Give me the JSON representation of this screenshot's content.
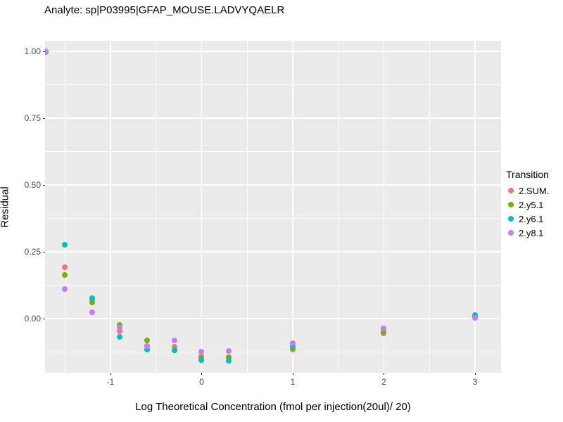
{
  "title": "Analyte: sp|P03995|GFAP_MOUSE.LADVYQAELR",
  "chart_data": {
    "type": "scatter",
    "title": "Analyte: sp|P03995|GFAP_MOUSE.LADVYQAELR",
    "xlabel": "Log Theoretical Concentration (fmol per injection(20ul)/ 20)",
    "ylabel": "Residual",
    "xlim": [
      -1.718,
      3.286
    ],
    "ylim": [
      -0.203,
      1.039
    ],
    "grid": true,
    "panel_bg": "#EBEBEB",
    "grid_color": "#FFFFFF",
    "x_major_ticks": [
      -1,
      0,
      1,
      2,
      3
    ],
    "x_major_labels": [
      "-1",
      "0",
      "1",
      "2",
      "3"
    ],
    "x_minor_ticks": [
      -1.5,
      -0.5,
      0.5,
      1.5,
      2.5
    ],
    "y_major_ticks": [
      0.0,
      0.25,
      0.5,
      0.75,
      1.0
    ],
    "y_major_labels": [
      "0.00",
      "0.25",
      "0.50",
      "0.75",
      "1.00"
    ],
    "y_minor_ticks": [
      -0.125,
      0.125,
      0.375,
      0.625,
      0.875
    ],
    "legend_title": "Transition",
    "legend_position": "right",
    "series": [
      {
        "name": "2.SUM.",
        "color": "#F8766D",
        "points": [
          [
            -1.71,
            0.999
          ],
          [
            -1.5,
            0.191
          ],
          [
            -1.2,
            0.07
          ],
          [
            -0.9,
            -0.047
          ],
          [
            -0.6,
            -0.104
          ],
          [
            -0.3,
            -0.105
          ],
          [
            0.0,
            -0.143
          ],
          [
            0.3,
            -0.146
          ],
          [
            1.0,
            -0.115
          ],
          [
            2.0,
            -0.056
          ],
          [
            3.0,
            0.004
          ]
        ]
      },
      {
        "name": "2.y5.1",
        "color": "#7CAE00",
        "points": [
          [
            -1.71,
            0.998
          ],
          [
            -1.5,
            0.164
          ],
          [
            -1.2,
            0.061
          ],
          [
            -0.9,
            -0.023
          ],
          [
            -0.6,
            -0.081
          ],
          [
            -0.3,
            -0.118
          ],
          [
            0.0,
            -0.147
          ],
          [
            0.3,
            -0.144
          ],
          [
            1.0,
            -0.111
          ],
          [
            2.0,
            -0.051
          ],
          [
            3.0,
            0.01
          ]
        ]
      },
      {
        "name": "2.y6.1",
        "color": "#00BFC4",
        "points": [
          [
            -1.72,
            0.998
          ],
          [
            -1.5,
            0.277
          ],
          [
            -1.2,
            0.077
          ],
          [
            -0.9,
            -0.068
          ],
          [
            -0.6,
            -0.115
          ],
          [
            -0.3,
            -0.12
          ],
          [
            0.0,
            -0.156
          ],
          [
            0.3,
            -0.157
          ],
          [
            1.0,
            -0.104
          ],
          [
            2.0,
            -0.038
          ],
          [
            3.0,
            0.012
          ]
        ]
      },
      {
        "name": "2.y8.1",
        "color": "#C77CFF",
        "points": [
          [
            -1.71,
            0.999
          ],
          [
            -1.5,
            0.11
          ],
          [
            -1.2,
            0.024
          ],
          [
            -0.9,
            -0.034
          ],
          [
            -0.6,
            -0.102
          ],
          [
            -0.3,
            -0.081
          ],
          [
            0.0,
            -0.123
          ],
          [
            0.3,
            -0.121
          ],
          [
            1.0,
            -0.092
          ],
          [
            2.0,
            -0.037
          ],
          [
            3.0,
            0.002
          ]
        ]
      }
    ]
  }
}
